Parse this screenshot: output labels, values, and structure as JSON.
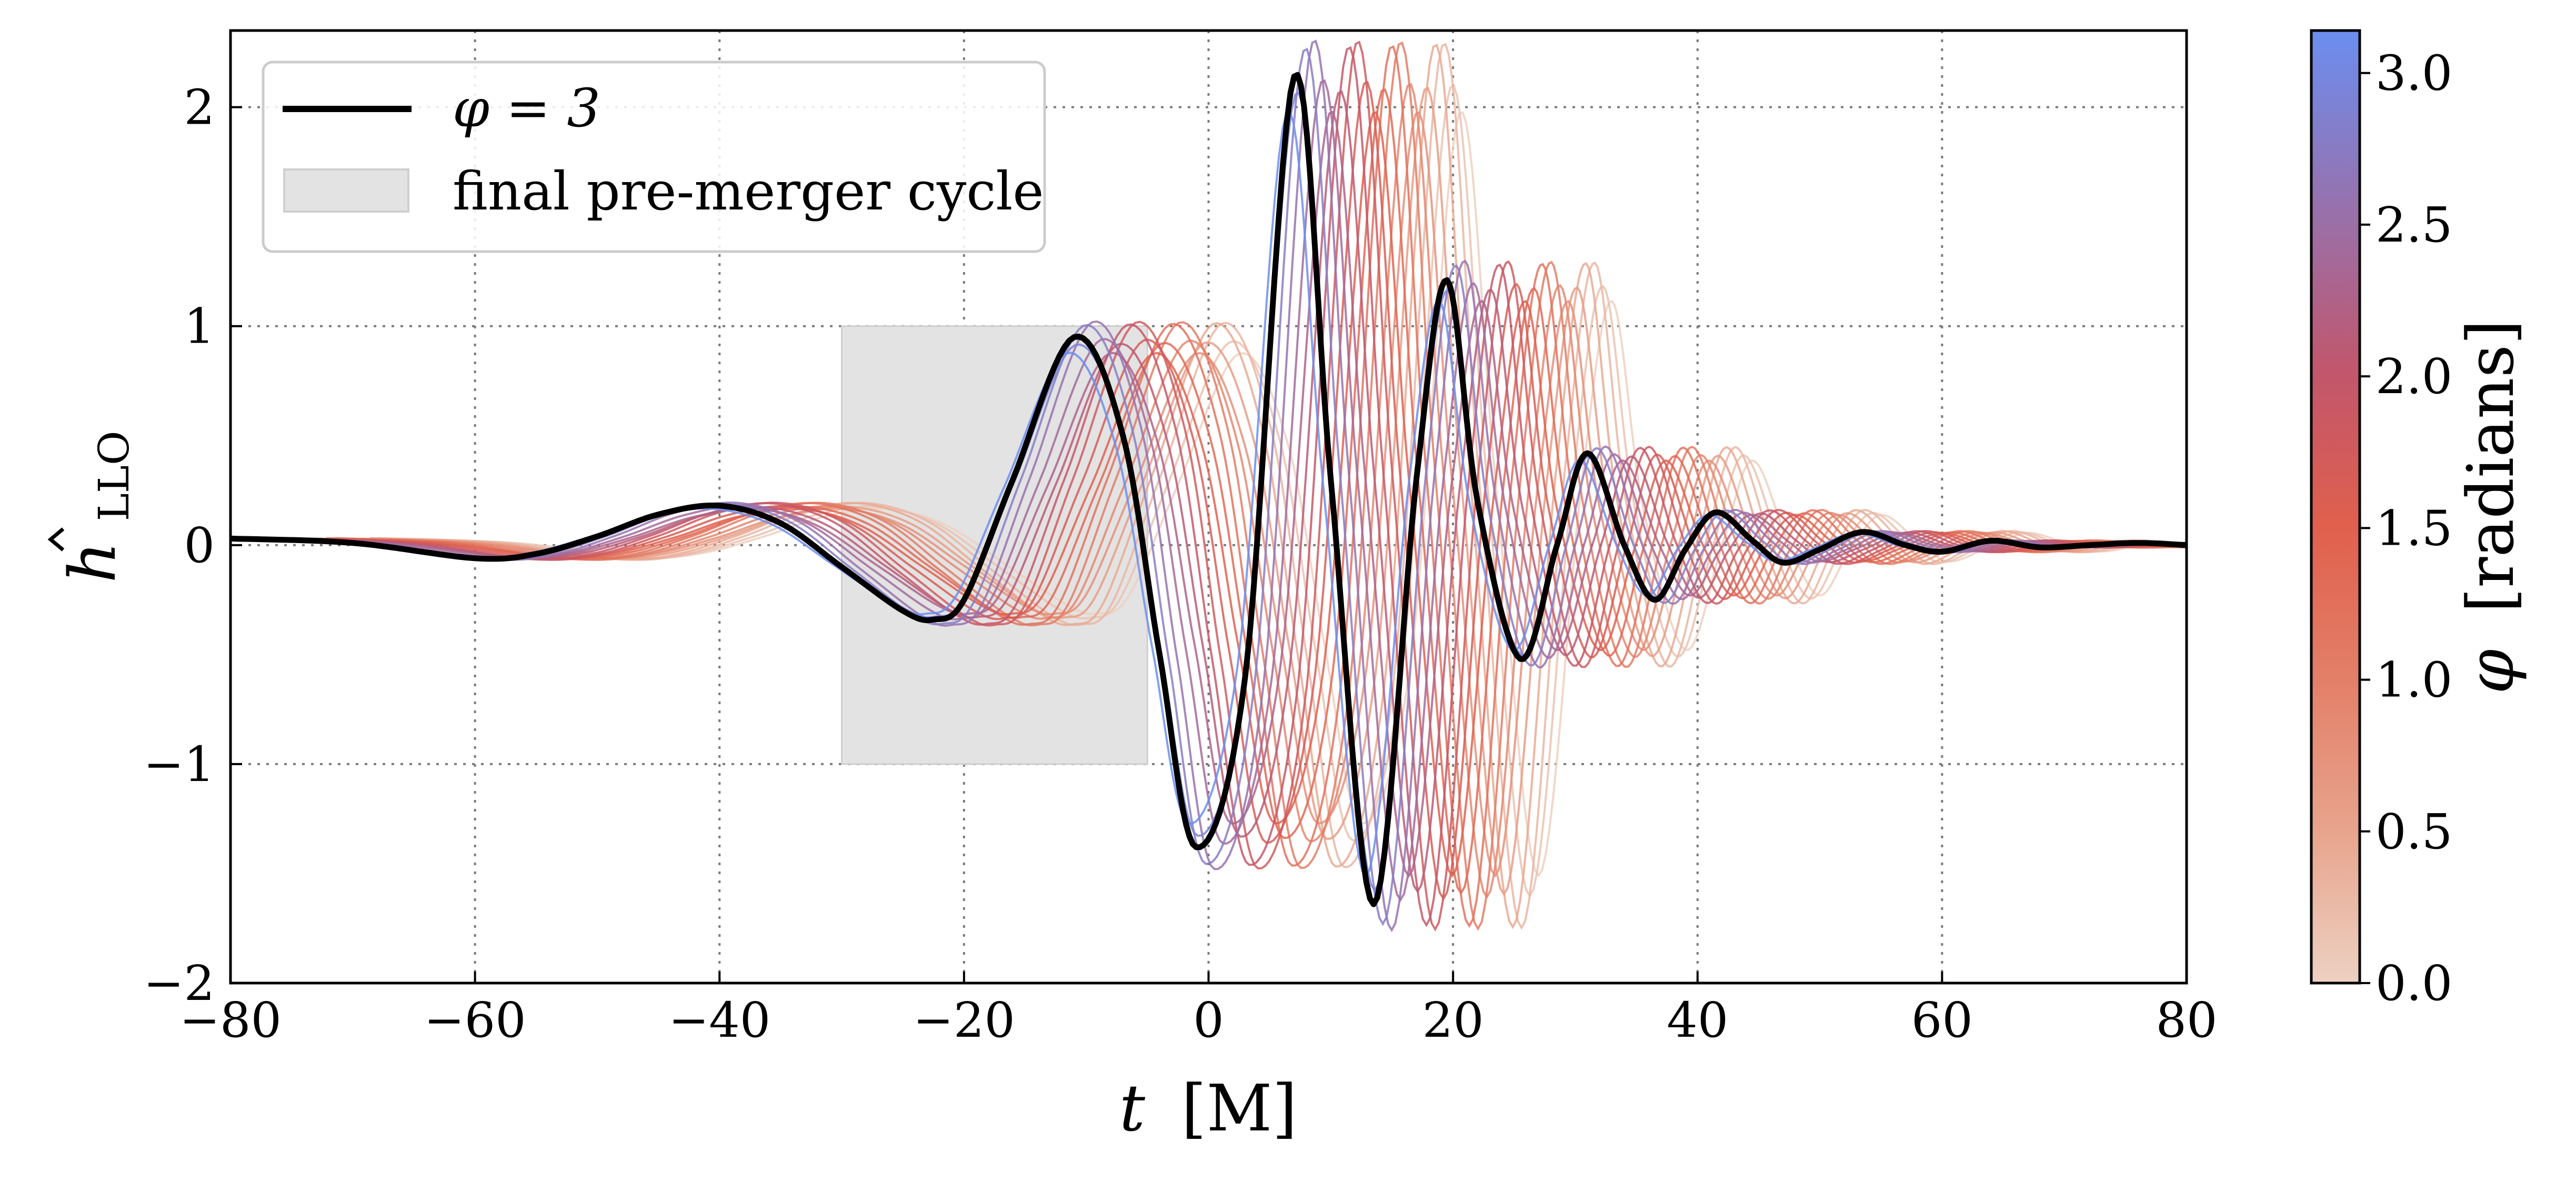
{
  "chart_data": {
    "type": "line",
    "title": "",
    "xlabel": "t [M]",
    "ylabel": "ĥ_LLO",
    "x_symbol": "t",
    "x_unit": "[M]",
    "y_symbol": "h",
    "y_subscript": "LLO",
    "xlim": [
      -80,
      80
    ],
    "ylim": [
      -2,
      2.35
    ],
    "xticks": [
      -80,
      -60,
      -40,
      -20,
      0,
      20,
      40,
      60,
      80
    ],
    "xtick_labels": [
      "−80",
      "−60",
      "−40",
      "−20",
      "0",
      "20",
      "40",
      "60",
      "80"
    ],
    "yticks": [
      -2,
      -1,
      0,
      1,
      2
    ],
    "ytick_labels": [
      "−2",
      "−1",
      "0",
      "1",
      "2"
    ],
    "grid": true,
    "legend_position": "top-left",
    "legend": [
      {
        "label": "φ = 3",
        "kind": "line",
        "color": "#000000"
      },
      {
        "label": "final pre-merger cycle",
        "kind": "patch",
        "color": "#e3e3e3"
      }
    ],
    "shaded_region": {
      "label": "final pre-merger cycle",
      "x": [
        -30,
        -5
      ],
      "y": [
        -1,
        1
      ],
      "color": "#e3e3e3"
    },
    "highlight_series": {
      "name": "φ = 3",
      "color": "#000000",
      "x": [
        -80,
        -70,
        -60,
        -55,
        -50,
        -45,
        -40,
        -35,
        -30,
        -25,
        -22.5,
        -20,
        -16,
        -11,
        -7,
        -4,
        -1,
        3,
        7,
        10,
        13.5,
        17,
        19.5,
        22,
        25.5,
        28.5,
        31,
        34,
        36.5,
        39,
        41.5,
        44.5,
        47,
        50,
        53.5,
        57,
        60,
        64,
        68,
        72,
        76,
        80
      ],
      "y": [
        0.03,
        0.01,
        -0.06,
        -0.04,
        0.04,
        0.14,
        0.18,
        0.1,
        -0.1,
        -0.3,
        -0.34,
        -0.25,
        0.3,
        0.95,
        0.5,
        -0.5,
        -1.38,
        -0.6,
        2.14,
        0.3,
        -1.64,
        0.3,
        1.21,
        0.2,
        -0.52,
        0.0,
        0.42,
        0.0,
        -0.25,
        -0.02,
        0.15,
        0.02,
        -0.08,
        -0.02,
        0.06,
        0.0,
        -0.03,
        0.02,
        -0.01,
        0.0,
        0.01,
        0.0
      ]
    },
    "phase_series": {
      "parameter": "φ",
      "note": "same waveform family as highlighted curve, shifted with φ from 0 to 3.14",
      "phi_values": [
        0.0,
        0.16,
        0.31,
        0.47,
        0.63,
        0.79,
        0.94,
        1.1,
        1.26,
        1.41,
        1.57,
        1.73,
        1.88,
        2.04,
        2.2,
        2.36,
        2.51,
        2.67,
        2.83,
        2.98,
        3.14
      ],
      "x_shift_per_radian": -4.5,
      "line_opacity": 0.85
    },
    "colorbar": {
      "label": "φ [radians]",
      "label_symbol": "φ",
      "label_unit": "[radians]",
      "range": [
        0.0,
        3.14
      ],
      "ticks": [
        0.0,
        0.5,
        1.0,
        1.5,
        2.0,
        2.5,
        3.0
      ],
      "tick_labels": [
        "0.0",
        "0.5",
        "1.0",
        "1.5",
        "2.0",
        "2.5",
        "3.0"
      ],
      "colors": [
        "#edd1c2",
        "#e8a48d",
        "#e37f68",
        "#e0604d",
        "#c2566b",
        "#9b6fa7",
        "#6b8ef0"
      ]
    }
  }
}
